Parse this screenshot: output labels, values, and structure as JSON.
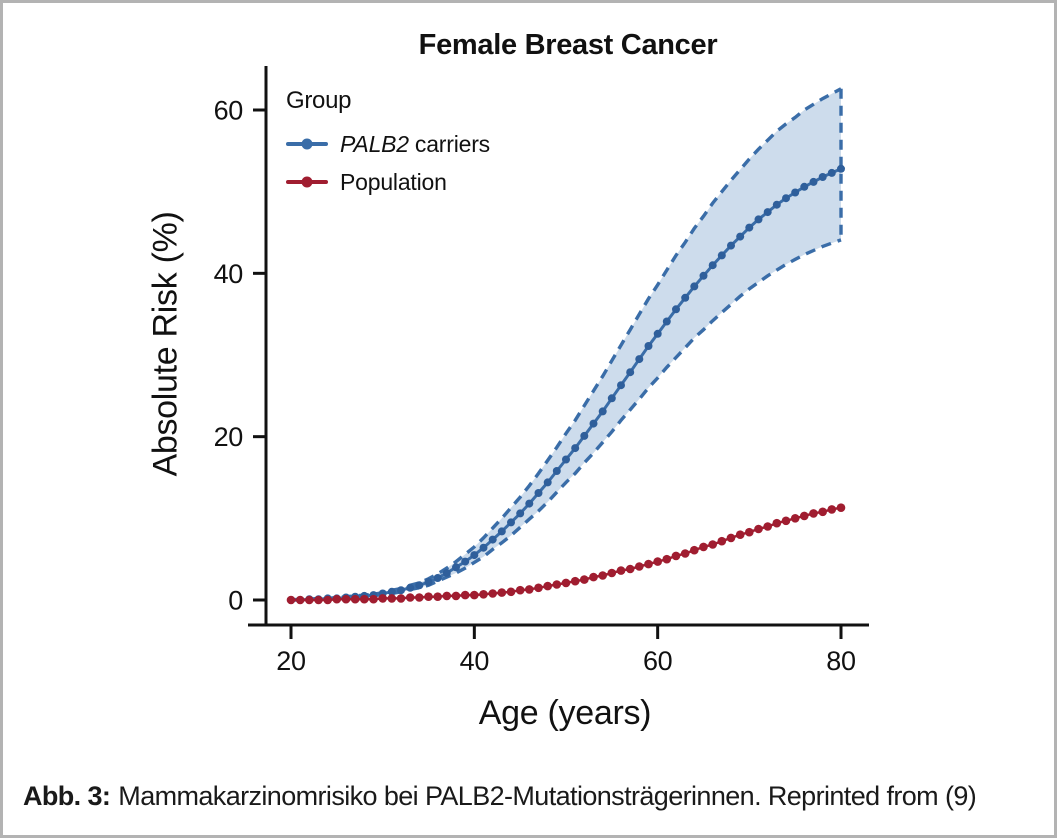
{
  "figure": {
    "title": "Female Breast Cancer",
    "x_axis_label": "Age (years)",
    "y_axis_label": "Absolute Risk (%)",
    "legend": {
      "title": "Group",
      "items": [
        {
          "label_italic": "PALB2",
          "label_text": "carriers",
          "color": "#3a6da8"
        },
        {
          "label_italic": "",
          "label_text": "Population",
          "color": "#a01d30"
        }
      ]
    }
  },
  "caption": {
    "prefix": "Abb. 3:",
    "text": "Mammakarzinomrisiko bei PALB2-Mutationsträgerinnen. Reprinted from (9)"
  },
  "colors": {
    "palb2_line": "#3a6da8",
    "palb2_dot": "#2f5f9b",
    "band_fill": "#cddcec",
    "population": "#a01d30",
    "axis": "#111111",
    "frame_border": "#b3b3b3"
  },
  "chart_data": {
    "type": "line",
    "title": "Female Breast Cancer",
    "xlabel": "Age (years)",
    "ylabel": "Absolute Risk (%)",
    "xlim": [
      20,
      80
    ],
    "ylim": [
      0,
      65
    ],
    "x_ticks": [
      20,
      40,
      60,
      80
    ],
    "y_ticks": [
      0,
      20,
      40,
      60
    ],
    "grid": false,
    "legend_position": "upper left",
    "x": [
      20,
      21,
      22,
      23,
      24,
      25,
      26,
      27,
      28,
      29,
      30,
      31,
      32,
      33,
      34,
      35,
      36,
      37,
      38,
      39,
      40,
      41,
      42,
      43,
      44,
      45,
      46,
      47,
      48,
      49,
      50,
      51,
      52,
      53,
      54,
      55,
      56,
      57,
      58,
      59,
      60,
      61,
      62,
      63,
      64,
      65,
      66,
      67,
      68,
      69,
      70,
      71,
      72,
      73,
      74,
      75,
      76,
      77,
      78,
      79,
      80
    ],
    "series": [
      {
        "name": "PALB2 carriers",
        "color": "#3a6da8",
        "values": [
          0.0,
          0.0,
          0.1,
          0.1,
          0.2,
          0.2,
          0.3,
          0.4,
          0.5,
          0.6,
          0.8,
          1.0,
          1.2,
          1.5,
          1.8,
          2.2,
          2.7,
          3.3,
          4.0,
          4.7,
          5.5,
          6.4,
          7.4,
          8.4,
          9.5,
          10.6,
          11.8,
          13.1,
          14.4,
          15.8,
          17.2,
          18.6,
          20.1,
          21.6,
          23.1,
          24.7,
          26.3,
          27.9,
          29.5,
          31.1,
          32.6,
          34.1,
          35.6,
          37.0,
          38.4,
          39.7,
          41.0,
          42.2,
          43.4,
          44.5,
          45.6,
          46.6,
          47.5,
          48.4,
          49.2,
          49.9,
          50.6,
          51.2,
          51.8,
          52.3,
          52.8
        ],
        "band_upper": [
          0.0,
          0.1,
          0.1,
          0.2,
          0.2,
          0.3,
          0.4,
          0.5,
          0.6,
          0.7,
          0.9,
          1.2,
          1.4,
          1.8,
          2.1,
          2.6,
          3.2,
          3.9,
          4.7,
          5.6,
          6.5,
          7.6,
          8.8,
          10.0,
          11.3,
          12.6,
          14.0,
          15.5,
          17.1,
          18.7,
          20.4,
          22.0,
          23.8,
          25.6,
          27.4,
          29.3,
          31.2,
          33.1,
          35.0,
          36.9,
          38.6,
          40.4,
          42.2,
          43.8,
          45.5,
          47.0,
          48.6,
          50.0,
          51.4,
          52.7,
          54.0,
          55.2,
          56.3,
          57.4,
          58.3,
          59.1,
          60.0,
          60.7,
          61.4,
          62.0,
          62.6
        ],
        "band_lower": [
          0.0,
          0.0,
          0.1,
          0.1,
          0.1,
          0.2,
          0.2,
          0.3,
          0.4,
          0.5,
          0.7,
          0.8,
          1.0,
          1.3,
          1.5,
          1.8,
          2.3,
          2.8,
          3.3,
          3.9,
          4.6,
          5.3,
          6.2,
          7.0,
          7.9,
          8.9,
          9.9,
          10.9,
          12.0,
          13.2,
          14.4,
          15.5,
          16.8,
          18.0,
          19.3,
          20.6,
          22.0,
          23.3,
          24.6,
          26.0,
          27.2,
          28.5,
          29.7,
          30.9,
          32.1,
          33.1,
          34.2,
          35.2,
          36.2,
          37.2,
          38.1,
          38.9,
          39.7,
          40.4,
          41.1,
          41.7,
          42.3,
          42.8,
          43.3,
          43.7,
          44.1
        ]
      },
      {
        "name": "Population",
        "color": "#a01d30",
        "values": [
          0.0,
          0.0,
          0.0,
          0.0,
          0.0,
          0.1,
          0.1,
          0.1,
          0.1,
          0.1,
          0.2,
          0.2,
          0.2,
          0.3,
          0.3,
          0.4,
          0.4,
          0.5,
          0.5,
          0.6,
          0.6,
          0.7,
          0.8,
          0.9,
          1.0,
          1.2,
          1.3,
          1.5,
          1.7,
          1.9,
          2.1,
          2.3,
          2.5,
          2.8,
          3.0,
          3.3,
          3.6,
          3.8,
          4.1,
          4.4,
          4.7,
          5.0,
          5.4,
          5.7,
          6.1,
          6.5,
          6.8,
          7.2,
          7.6,
          8.0,
          8.3,
          8.7,
          9.0,
          9.4,
          9.7,
          10.0,
          10.3,
          10.6,
          10.8,
          11.1,
          11.3
        ]
      }
    ]
  }
}
